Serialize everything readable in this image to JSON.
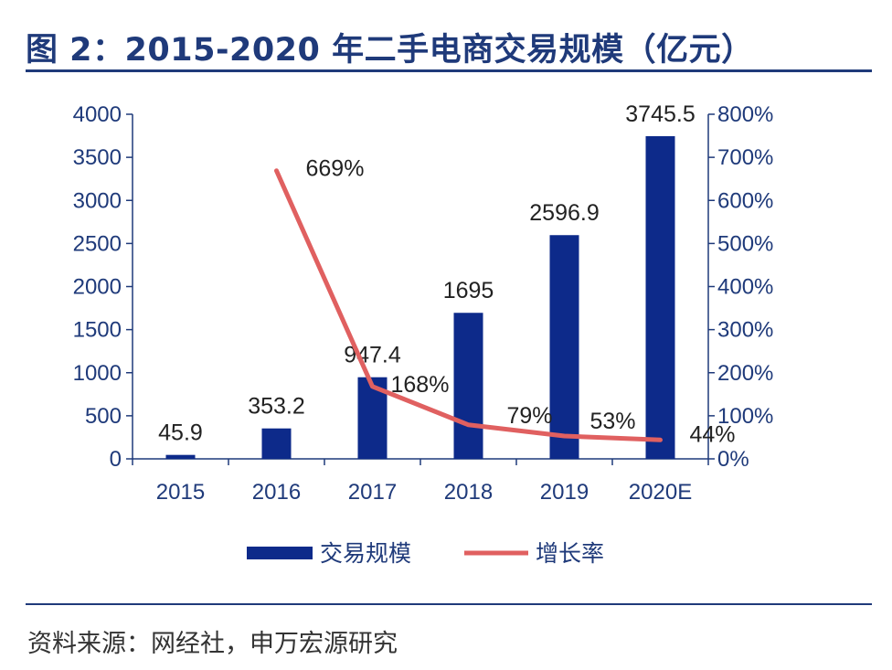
{
  "title": "图 2：2015-2020 年二手电商交易规模（亿元）",
  "source": "资料来源：网经社，申万宏源研究",
  "colors": {
    "bar": "#0d2a8a",
    "line": "#e06060",
    "axis": "#1f3a7a"
  },
  "chart_data": {
    "type": "bar",
    "categories": [
      "2015",
      "2016",
      "2017",
      "2018",
      "2019",
      "2020E"
    ],
    "series": [
      {
        "name": "交易规模",
        "type": "bar",
        "axis": "left",
        "values": [
          45.9,
          353.2,
          947.4,
          1695,
          2596.9,
          3745.5
        ],
        "labels": [
          "45.9",
          "353.2",
          "947.4",
          "1695",
          "2596.9",
          "3745.5"
        ]
      },
      {
        "name": "增长率",
        "type": "line",
        "axis": "right",
        "values": [
          null,
          669,
          168,
          79,
          53,
          44
        ],
        "labels": [
          null,
          "669%",
          "168%",
          "79%",
          "53%",
          "44%"
        ]
      }
    ],
    "y_left": {
      "min": 0,
      "max": 4000,
      "ticks": [
        "0",
        "500",
        "1000",
        "1500",
        "2000",
        "2500",
        "3000",
        "3500",
        "4000"
      ]
    },
    "y_right": {
      "min": 0,
      "max": 800,
      "ticks": [
        "0%",
        "100%",
        "200%",
        "300%",
        "400%",
        "500%",
        "600%",
        "700%",
        "800%"
      ]
    },
    "legend_position": "bottom",
    "grid": false
  }
}
